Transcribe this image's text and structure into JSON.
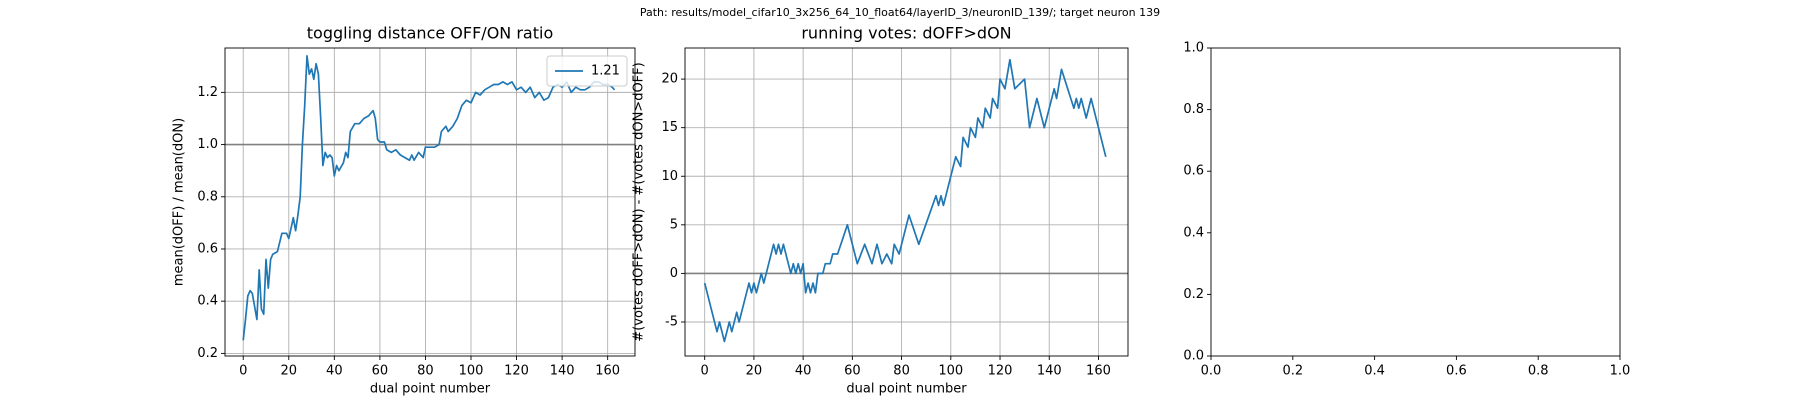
{
  "title": "Path: results/model_cifar10_3x256_64_10_float64/layerID_3/neuronID_139/; target neuron 139",
  "chart_data": [
    {
      "type": "line",
      "title": "toggling distance OFF/ON ratio",
      "x_label": "dual point number",
      "y_label": "mean(dOFF) / mean(dON)",
      "xlim": [
        -8,
        172
      ],
      "ylim": [
        0.19,
        1.37
      ],
      "xticks": [
        0,
        20,
        40,
        60,
        80,
        100,
        120,
        140,
        160
      ],
      "yticks": [
        0.2,
        0.4,
        0.6,
        0.8,
        {
          "value": 1,
          "label": "1.0"
        },
        1.2
      ],
      "grid": true,
      "hline": 1,
      "legend": "upper right",
      "series": [
        {
          "name": "1.21",
          "color": "#1f77b4",
          "x": [
            0,
            1,
            2,
            3,
            4,
            5,
            6,
            7,
            8,
            9,
            10,
            11,
            12,
            13,
            15,
            17,
            19,
            20,
            21,
            22,
            23,
            24,
            25,
            26,
            27,
            28,
            29,
            30,
            31,
            32,
            33,
            34,
            35,
            36,
            37,
            38,
            39,
            40,
            41,
            42,
            44,
            45,
            46,
            47,
            49,
            51,
            53,
            55,
            57,
            58,
            59,
            60,
            62,
            63,
            65,
            67,
            69,
            71,
            73,
            74,
            75,
            77,
            79,
            80,
            84,
            86,
            87,
            89,
            90,
            92,
            94,
            96,
            98,
            100,
            102,
            104,
            106,
            108,
            110,
            112,
            114,
            116,
            118,
            120,
            122,
            124,
            126,
            128,
            130,
            132,
            134,
            136,
            138,
            140,
            142,
            144,
            146,
            148,
            150,
            152,
            154,
            156,
            158,
            160,
            162,
            163
          ],
          "values": [
            0.25,
            0.33,
            0.42,
            0.44,
            0.43,
            0.38,
            0.33,
            0.52,
            0.37,
            0.35,
            0.56,
            0.45,
            0.56,
            0.58,
            0.59,
            0.66,
            0.66,
            0.64,
            0.68,
            0.72,
            0.67,
            0.73,
            0.8,
            1.0,
            1.15,
            1.34,
            1.27,
            1.29,
            1.25,
            1.31,
            1.27,
            1.1,
            0.92,
            0.97,
            0.95,
            0.96,
            0.95,
            0.88,
            0.92,
            0.9,
            0.93,
            0.97,
            0.95,
            1.05,
            1.08,
            1.08,
            1.1,
            1.11,
            1.13,
            1.1,
            1.02,
            1.01,
            1.01,
            0.98,
            0.97,
            0.98,
            0.96,
            0.95,
            0.94,
            0.96,
            0.94,
            0.97,
            0.95,
            0.99,
            0.99,
            1.0,
            1.05,
            1.07,
            1.05,
            1.07,
            1.1,
            1.15,
            1.17,
            1.16,
            1.2,
            1.19,
            1.21,
            1.22,
            1.23,
            1.23,
            1.24,
            1.23,
            1.24,
            1.21,
            1.22,
            1.2,
            1.22,
            1.18,
            1.2,
            1.17,
            1.18,
            1.22,
            1.23,
            1.22,
            1.24,
            1.2,
            1.22,
            1.21,
            1.21,
            1.22,
            1.24,
            1.24,
            1.23,
            1.23,
            1.22,
            1.21
          ]
        }
      ]
    },
    {
      "type": "line",
      "title": "running votes: dOFF>dON",
      "x_label": "dual point number",
      "y_label": "#(votes dOFF>dON) - #(votes dON>dOFF)",
      "xlim": [
        -8,
        172
      ],
      "ylim": [
        -8.5,
        23.2
      ],
      "xticks": [
        0,
        20,
        40,
        60,
        80,
        100,
        120,
        140,
        160
      ],
      "yticks": [
        -5,
        0,
        5,
        10,
        15,
        20
      ],
      "grid": true,
      "hline": 0,
      "series": [
        {
          "color": "#1f77b4",
          "x": [
            0,
            5,
            6,
            8,
            10,
            11,
            13,
            14,
            18,
            19,
            20,
            21,
            23,
            24,
            28,
            29,
            30,
            31,
            32,
            35,
            36,
            37,
            38,
            39,
            40,
            41,
            42,
            43,
            44,
            45,
            46,
            48,
            49,
            51,
            52,
            54,
            58,
            62,
            65,
            68,
            70,
            72,
            74,
            76,
            77,
            79,
            80,
            83,
            87,
            94,
            95,
            96,
            97,
            98,
            102,
            104,
            105,
            107,
            108,
            110,
            111,
            113,
            114,
            116,
            117,
            119,
            120,
            122,
            124,
            126,
            130,
            132,
            135,
            138,
            142,
            143,
            145,
            150,
            151,
            152,
            153,
            155,
            157,
            163
          ],
          "values": [
            -1,
            -6,
            -5,
            -7,
            -5,
            -6,
            -4,
            -5,
            -1,
            -2,
            -1,
            -2,
            0,
            -1,
            3,
            2,
            3,
            2,
            3,
            0,
            1,
            0,
            1,
            0,
            1,
            -2,
            -1,
            -2,
            -1,
            -2,
            0,
            0,
            1,
            1,
            2,
            2,
            5,
            1,
            3,
            1,
            3,
            1,
            2,
            1,
            3,
            2,
            3,
            6,
            3,
            8,
            7,
            8,
            7,
            8,
            12,
            11,
            14,
            13,
            15,
            14,
            16,
            15,
            17,
            16,
            18,
            17,
            20,
            19,
            22,
            19,
            20,
            15,
            18,
            15,
            19,
            18,
            21,
            17,
            18,
            17,
            18,
            16,
            18,
            12
          ]
        }
      ]
    },
    {
      "type": "empty",
      "xlim": [
        0,
        1
      ],
      "ylim": [
        0,
        1
      ],
      "xticks": [
        {
          "value": 0,
          "label": "0.0"
        },
        0.2,
        0.4,
        0.6,
        0.8,
        {
          "value": 1,
          "label": "1.0"
        }
      ],
      "yticks": [
        {
          "value": 0,
          "label": "0.0"
        },
        0.2,
        0.4,
        0.6,
        0.8,
        {
          "value": 1,
          "label": "1.0"
        }
      ],
      "grid": false
    }
  ]
}
